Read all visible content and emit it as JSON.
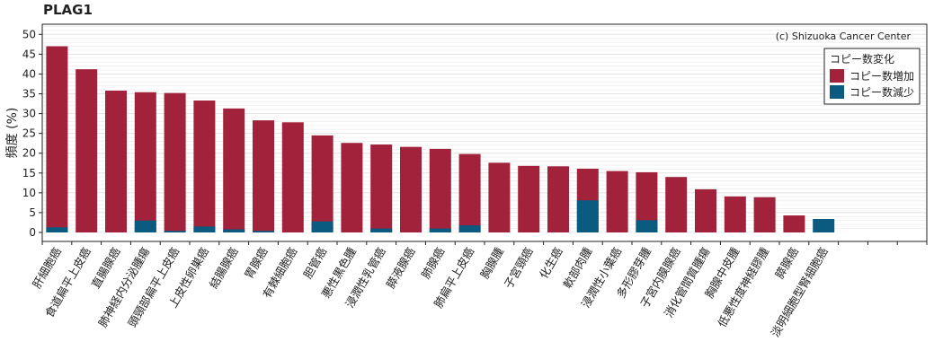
{
  "chart_data": {
    "type": "bar",
    "title": "PLAG1",
    "ylabel": "頻度 (%)",
    "xlabel": "",
    "ylim": [
      0,
      52
    ],
    "yticks": [
      0,
      5,
      10,
      15,
      20,
      25,
      30,
      35,
      40,
      45,
      50
    ],
    "grid": true,
    "credit": "(c) Shizuoka Cancer Center",
    "legend": {
      "title": "コピー数変化",
      "position": "top-right"
    },
    "empty_slots": 3,
    "categories": [
      "肝細胞癌",
      "食道扁平上皮癌",
      "直腸腺癌",
      "肺神経内分泌腫瘍",
      "頭頸部扁平上皮癌",
      "上皮性卵巣癌",
      "結腸腺癌",
      "胃腺癌",
      "有棘細胞癌",
      "胆管癌",
      "悪性黒色腫",
      "浸潤性乳管癌",
      "膵液腺癌",
      "肺腺癌",
      "肺扁平上皮癌",
      "胸腺腫",
      "子宮頸癌",
      "化生癌",
      "軟部肉腫",
      "浸潤性小葉癌",
      "多形膠芽腫",
      "子宮内膜腺癌",
      "消化管間質腫瘍",
      "胸腺中皮腫",
      "低悪性度神経膠腫",
      "膵腺癌",
      "淡明細胞型腎細胞癌"
    ],
    "series": [
      {
        "name": "コピー数増加",
        "color": "#a3223b",
        "values": [
          47.0,
          41.2,
          35.8,
          35.4,
          35.2,
          33.3,
          31.3,
          28.3,
          27.8,
          24.5,
          22.6,
          22.2,
          21.6,
          21.1,
          19.8,
          17.6,
          16.8,
          16.7,
          16.1,
          15.5,
          15.2,
          14.0,
          10.9,
          9.1,
          8.9,
          4.3,
          0.0
        ]
      },
      {
        "name": "コピー数減少",
        "color": "#0b5a80",
        "values": [
          1.3,
          0.0,
          0.0,
          3.0,
          0.4,
          1.5,
          0.8,
          0.4,
          0.0,
          2.8,
          0.0,
          1.0,
          0.0,
          1.0,
          1.8,
          0.0,
          0.0,
          0.0,
          8.1,
          0.0,
          3.1,
          0.0,
          0.0,
          0.0,
          0.0,
          0.0,
          3.4
        ]
      }
    ]
  }
}
